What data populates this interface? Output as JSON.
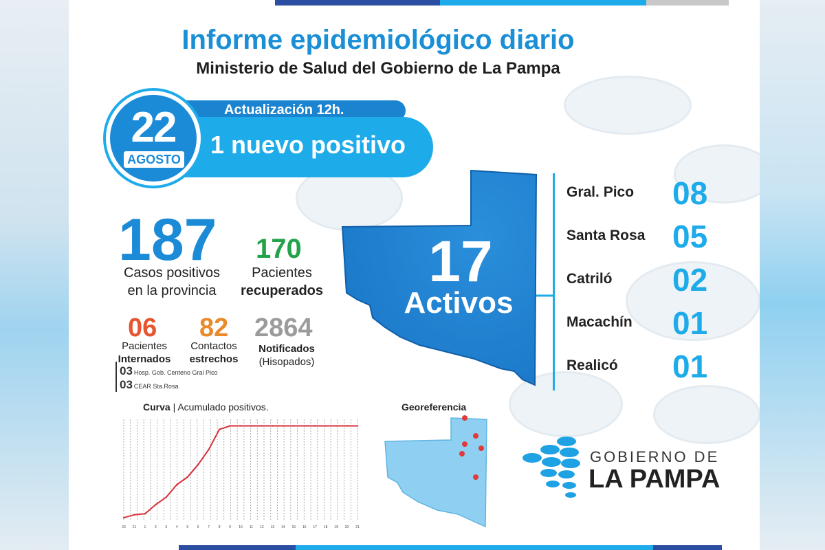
{
  "header": {
    "title": "Informe epidemiológico diario",
    "subtitle": "Ministerio de Salud del Gobierno de La Pampa"
  },
  "date": {
    "day": "22",
    "month": "AGOSTO"
  },
  "update": {
    "label": "Actualización 12h.",
    "headline": "1 nuevo positivo"
  },
  "totals": {
    "positives_value": "187",
    "positives_line1": "Casos positivos",
    "positives_line2": "en la provincia",
    "recovered_value": "170",
    "recovered_line1": "Pacientes",
    "recovered_line2": "recuperados"
  },
  "stats": {
    "hosp_value": "06",
    "hosp_line1": "Pacientes",
    "hosp_line2": "Internados",
    "contacts_value": "82",
    "contacts_line1": "Contactos",
    "contacts_line2": "estrechos",
    "notified_value": "2864",
    "notified_line1": "Notificados",
    "notified_line2": "(Hisopados)"
  },
  "hospitals": [
    {
      "count": "03",
      "name": "Hosp. Gob. Centeno Gral Pico"
    },
    {
      "count": "03",
      "name": "CEAR Sta.Rosa"
    }
  ],
  "active": {
    "value": "17",
    "label": "Activos"
  },
  "towns": [
    {
      "name": "Gral. Pico",
      "count": "08"
    },
    {
      "name": "Santa Rosa",
      "count": "05"
    },
    {
      "name": "Catriló",
      "count": "02"
    },
    {
      "name": "Macachín",
      "count": "01"
    },
    {
      "name": "Realicó",
      "count": "01"
    }
  ],
  "curve": {
    "title_bold": "Curva",
    "title_rest": " | Acumulado positivos."
  },
  "georef": {
    "title": "Georeferencia"
  },
  "logo": {
    "top": "GOBIERNO DE",
    "bottom": "LA PAMPA"
  },
  "colors": {
    "primary_blue": "#1b8bd8",
    "light_blue": "#1eabea",
    "recovered_green": "#22a34a",
    "hosp_red": "#e8542f",
    "contacts_orange": "#e98a2b",
    "notified_gray": "#9b9b9b",
    "curve_red": "#d9303a"
  },
  "chart_data": {
    "type": "line",
    "title": "Curva | Acumulado positivos.",
    "xlabel": "",
    "ylabel": "",
    "x_ticks_visible": [
      "23",
      "21",
      "1",
      "2",
      "3",
      "4",
      "5",
      "6",
      "7",
      "8",
      "9",
      "10",
      "11",
      "12",
      "13",
      "14",
      "15",
      "16",
      "17",
      "18",
      "19",
      "20",
      "21"
    ],
    "series": [
      {
        "values": [
          4,
          10,
          12,
          30,
          45,
          70,
          85,
          110,
          140,
          180,
          187,
          187,
          187,
          187,
          187,
          187,
          187,
          187,
          187,
          187,
          187,
          187,
          187
        ]
      }
    ],
    "ylim": [
      0,
      200
    ],
    "grid": "vertical dashed"
  }
}
